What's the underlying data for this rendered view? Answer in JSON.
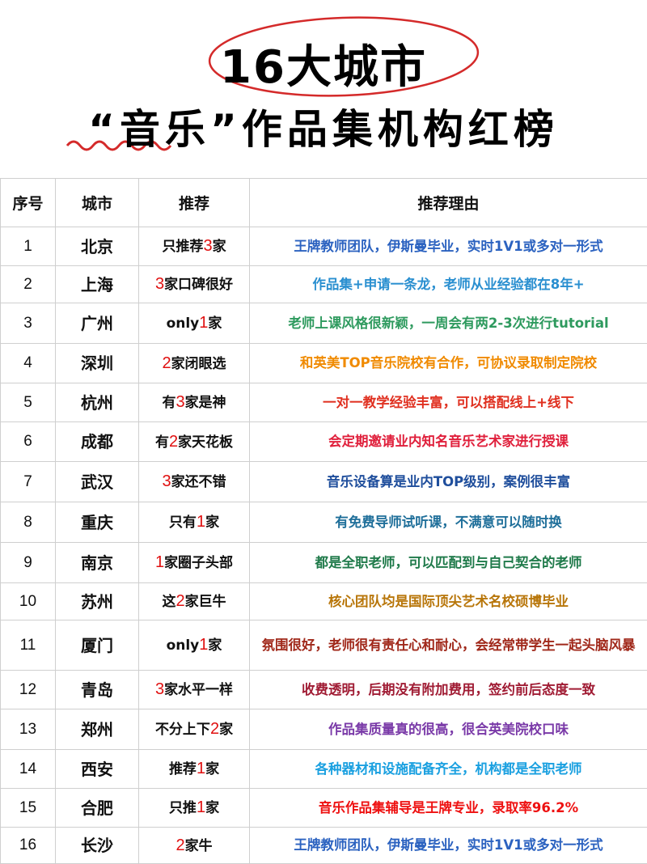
{
  "title": {
    "line1": "16大城市",
    "line2": "“音乐”作品集机构红榜"
  },
  "colors": {
    "circle": "#d42a2a",
    "squiggle": "#d42a2a",
    "highlight_number": "#e01010"
  },
  "table": {
    "headers": [
      "序号",
      "城市",
      "推荐",
      "推荐理由"
    ],
    "rows": [
      {
        "no": "1",
        "city": "北京",
        "rec_pre": "只推荐",
        "rec_num": "3",
        "rec_post": "家",
        "reason": "王牌教师团队，伊斯曼毕业，实时1V1或多对一形式",
        "color": "#2b62c0"
      },
      {
        "no": "2",
        "city": "上海",
        "rec_pre": "",
        "rec_num": "3",
        "rec_post": "家口碑很好",
        "reason": "作品集+申请一条龙，老师从业经验都在8年+",
        "color": "#2a8fd0"
      },
      {
        "no": "3",
        "city": "广州",
        "rec_pre": "only",
        "rec_num": "1",
        "rec_post": "家",
        "reason": "老师上课风格很新颖，一周会有两2-3次进行tutorial",
        "color": "#2e9a5e"
      },
      {
        "no": "4",
        "city": "深圳",
        "rec_pre": "",
        "rec_num": "2",
        "rec_post": "家闭眼选",
        "reason": "和英美TOP音乐院校有合作，可协议录取制定院校",
        "color": "#f08a00"
      },
      {
        "no": "5",
        "city": "杭州",
        "rec_pre": "有",
        "rec_num": "3",
        "rec_post": "家是神",
        "reason": "一对一教学经验丰富，可以搭配线上+线下",
        "color": "#e03020"
      },
      {
        "no": "6",
        "city": "成都",
        "rec_pre": "有",
        "rec_num": "2",
        "rec_post": "家天花板",
        "reason": "会定期邀请业内知名音乐艺术家进行授课",
        "color": "#e0203c"
      },
      {
        "no": "7",
        "city": "武汉",
        "rec_pre": "",
        "rec_num": "3",
        "rec_post": "家还不错",
        "reason": "音乐设备算是业内TOP级别，案例很丰富",
        "color": "#1f4e9c"
      },
      {
        "no": "8",
        "city": "重庆",
        "rec_pre": "只有",
        "rec_num": "1",
        "rec_post": "家",
        "reason": "有免费导师试听课，不满意可以随时换",
        "color": "#1f6f9a"
      },
      {
        "no": "9",
        "city": "南京",
        "rec_pre": "",
        "rec_num": "1",
        "rec_post": "家圈子头部",
        "reason": "都是全职老师，可以匹配到与自己契合的老师",
        "color": "#1f7a4a"
      },
      {
        "no": "10",
        "city": "苏州",
        "rec_pre": "这",
        "rec_num": "2",
        "rec_post": "家巨牛",
        "reason": "核心团队均是国际顶尖艺术名校硕博毕业",
        "color": "#b8760a"
      },
      {
        "no": "11",
        "city": "厦门",
        "rec_pre": "only",
        "rec_num": "1",
        "rec_post": "家",
        "reason": "氛围很好，老师很有责任心和耐心，会经常带学生一起头脑风暴",
        "color": "#a0281a"
      },
      {
        "no": "12",
        "city": "青岛",
        "rec_pre": "",
        "rec_num": "3",
        "rec_post": "家水平一样",
        "reason": "收费透明，后期没有附加费用，签约前后态度一致",
        "color": "#a01c34"
      },
      {
        "no": "13",
        "city": "郑州",
        "rec_pre": "不分上下",
        "rec_num": "2",
        "rec_post": "家",
        "reason": "作品集质量真的很高，很合英美院校口味",
        "color": "#7a3aa8"
      },
      {
        "no": "14",
        "city": "西安",
        "rec_pre": "推荐",
        "rec_num": "1",
        "rec_post": "家",
        "reason": "各种器材和设施配备齐全，机构都是全职老师",
        "color": "#1aa0e0"
      },
      {
        "no": "15",
        "city": "合肥",
        "rec_pre": "只推",
        "rec_num": "1",
        "rec_post": "家",
        "reason": "音乐作品集辅导是王牌专业，录取率96.2%",
        "color": "#ee1111"
      },
      {
        "no": "16",
        "city": "长沙",
        "rec_pre": "",
        "rec_num": "2",
        "rec_post": "家牛",
        "reason": "王牌教师团队，伊斯曼毕业，实时1V1或多对一形式",
        "color": "#2b62c0"
      }
    ]
  }
}
